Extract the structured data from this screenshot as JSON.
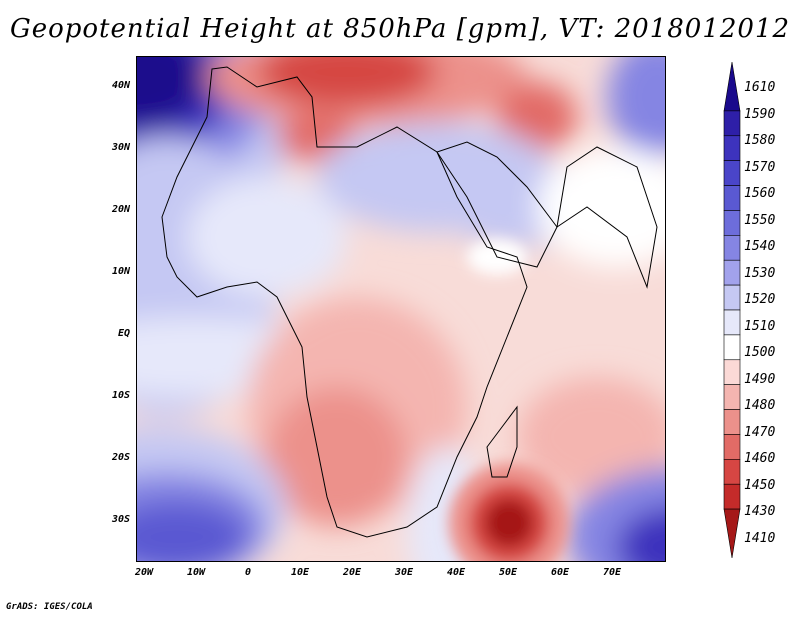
{
  "title": "Geopotential Height at 850hPa [gpm], VT: 2018012012",
  "credit": "GrADS: IGES/COLA",
  "lat_labels": [
    "40N",
    "30N",
    "20N",
    "10N",
    "EQ",
    "10S",
    "20S",
    "30S"
  ],
  "lon_labels": [
    "20W",
    "10W",
    "0",
    "10E",
    "20E",
    "30E",
    "40E",
    "50E",
    "60E",
    "70E"
  ],
  "colorbar": {
    "levels": [
      "1610",
      "1590",
      "1580",
      "1570",
      "1560",
      "1550",
      "1540",
      "1530",
      "1520",
      "1510",
      "1500",
      "1490",
      "1480",
      "1470",
      "1460",
      "1450",
      "1430",
      "1410"
    ],
    "colors": [
      "#1a0a8c",
      "#2e1fa8",
      "#3d33bd",
      "#4a45c9",
      "#5a59d2",
      "#6d6ddb",
      "#8585e3",
      "#a2a2ec",
      "#c5c8f3",
      "#e6e8fa",
      "#ffffff",
      "#fbd9d6",
      "#f4b5b0",
      "#ec918b",
      "#e26b66",
      "#d64643",
      "#c42b2a",
      "#a51818"
    ]
  }
}
